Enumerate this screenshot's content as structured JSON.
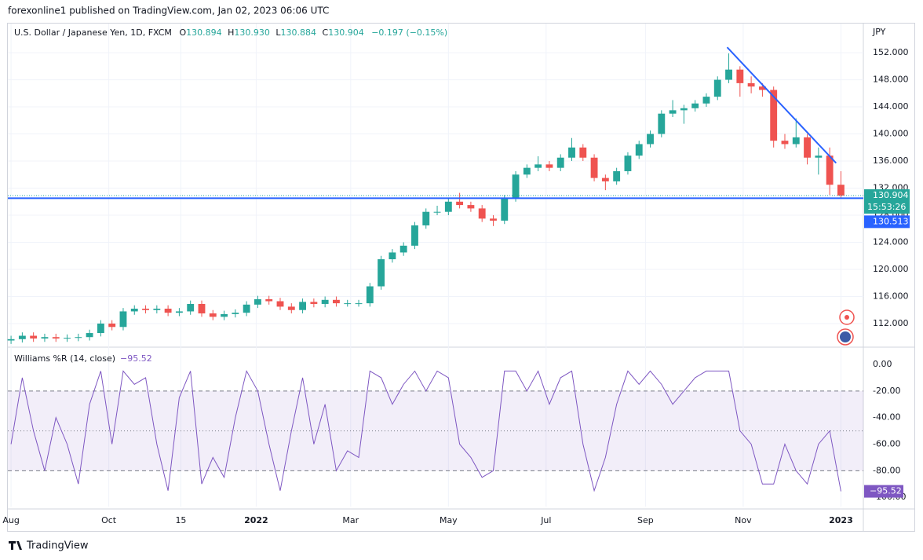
{
  "header": {
    "publisher": "forexonline1 published on TradingView.com, Jan 02, 2023 06:06 UTC"
  },
  "footer": {
    "brand": "TradingView"
  },
  "chart_data": [
    {
      "type": "candlestick",
      "title": "U.S. Dollar / Japanese Yen, 1D, FXCM",
      "ohlc": [
        {
          "label": "O",
          "value": "130.894"
        },
        {
          "label": "H",
          "value": "130.930"
        },
        {
          "label": "L",
          "value": "130.884"
        },
        {
          "label": "C",
          "value": "130.904"
        }
      ],
      "change": "−0.197 (−0.15%)",
      "y_unit": "JPY",
      "up_color": "#26a69a",
      "down_color": "#ef5350",
      "grid": true,
      "x": [
        0,
        7,
        14,
        21,
        28,
        35,
        42,
        49,
        56,
        63,
        70,
        77,
        84,
        91,
        98,
        105,
        112,
        119,
        126,
        133,
        140,
        147,
        154,
        161,
        168,
        175,
        182,
        189,
        196,
        203,
        210,
        217,
        224,
        231,
        238,
        245,
        252,
        259,
        266,
        273,
        280,
        287,
        294,
        301,
        308,
        315,
        322,
        329,
        336,
        343,
        350,
        357,
        364,
        371,
        378,
        385,
        392,
        399,
        406,
        413,
        420,
        427,
        434,
        441,
        448,
        455,
        462,
        469,
        476,
        483,
        490,
        497,
        504,
        511,
        518
      ],
      "open": [
        109.5,
        109.7,
        110.2,
        109.8,
        110.0,
        109.8,
        109.9,
        110.0,
        110.6,
        112.0,
        111.5,
        113.8,
        114.2,
        114.0,
        114.2,
        113.6,
        113.8,
        114.9,
        113.5,
        113.0,
        113.4,
        113.6,
        114.8,
        115.6,
        115.3,
        114.5,
        114.0,
        115.2,
        114.9,
        115.5,
        115.0,
        115.0,
        115.0,
        117.5,
        121.5,
        122.5,
        123.5,
        126.5,
        128.5,
        128.5,
        130.0,
        129.5,
        129.0,
        127.5,
        127.2,
        130.5,
        134.0,
        135.0,
        135.5,
        135.0,
        136.5,
        138.0,
        136.5,
        133.5,
        133.0,
        134.5,
        136.8,
        138.5,
        140.0,
        143.0,
        143.5,
        143.8,
        144.5,
        145.5,
        148.0,
        149.5,
        147.5,
        147.0,
        146.5,
        139.0,
        138.5,
        139.5,
        136.5,
        136.8,
        132.5
      ],
      "high": [
        110.2,
        110.7,
        110.7,
        110.5,
        110.5,
        110.4,
        110.5,
        111.1,
        112.5,
        112.5,
        114.3,
        114.7,
        114.7,
        114.7,
        114.7,
        114.3,
        115.4,
        115.4,
        114.0,
        113.9,
        114.1,
        115.3,
        116.1,
        116.1,
        115.8,
        115.0,
        115.7,
        115.7,
        116.0,
        116.0,
        115.5,
        115.5,
        118.0,
        122.0,
        123.0,
        124.0,
        127.0,
        129.0,
        129.4,
        130.5,
        131.3,
        130.0,
        129.5,
        128.0,
        131.0,
        134.5,
        135.5,
        136.7,
        136.0,
        137.0,
        139.4,
        138.5,
        137.0,
        134.0,
        135.0,
        137.3,
        139.0,
        140.5,
        143.5,
        145.0,
        144.3,
        145.0,
        146.0,
        148.5,
        151.9,
        150.0,
        148.5,
        147.5,
        147.0,
        140.0,
        142.3,
        140.0,
        138.0,
        138.0,
        134.5
      ],
      "low": [
        109.0,
        109.2,
        109.3,
        109.3,
        109.3,
        109.3,
        109.4,
        109.5,
        110.1,
        111.0,
        111.0,
        113.3,
        113.5,
        113.5,
        113.1,
        113.1,
        113.3,
        113.0,
        112.5,
        112.5,
        112.9,
        113.1,
        114.3,
        114.8,
        114.0,
        113.5,
        113.5,
        114.4,
        114.4,
        114.5,
        114.5,
        114.5,
        114.5,
        117.0,
        121.0,
        122.0,
        123.0,
        126.0,
        128.0,
        128.0,
        129.0,
        128.5,
        127.0,
        126.4,
        126.7,
        130.0,
        133.5,
        134.5,
        134.5,
        134.5,
        136.0,
        136.0,
        133.0,
        131.7,
        132.5,
        134.0,
        136.3,
        138.0,
        139.5,
        142.5,
        141.5,
        143.3,
        144.0,
        145.0,
        147.5,
        145.5,
        146.0,
        145.5,
        138.0,
        137.8,
        138.0,
        135.5,
        134.0,
        131.0,
        130.5
      ],
      "close": [
        109.7,
        110.2,
        109.8,
        110.0,
        109.8,
        109.9,
        110.0,
        110.6,
        112.0,
        111.5,
        113.8,
        114.2,
        114.0,
        114.2,
        113.6,
        113.8,
        114.9,
        113.5,
        113.0,
        113.4,
        113.6,
        114.8,
        115.6,
        115.3,
        114.5,
        114.0,
        115.2,
        114.9,
        115.5,
        115.0,
        115.0,
        115.0,
        117.5,
        121.5,
        122.5,
        123.5,
        126.5,
        128.5,
        128.5,
        130.0,
        129.5,
        129.0,
        127.5,
        127.2,
        130.5,
        134.0,
        135.0,
        135.5,
        135.0,
        136.5,
        138.0,
        136.5,
        133.5,
        133.0,
        134.5,
        136.8,
        138.5,
        140.0,
        143.0,
        143.5,
        143.8,
        144.5,
        145.5,
        148.0,
        149.5,
        147.5,
        147.0,
        146.5,
        139.0,
        138.5,
        139.5,
        136.5,
        136.8,
        132.5,
        130.904
      ],
      "xlim": [
        -2,
        532
      ],
      "ylim": [
        108.75,
        156.3
      ],
      "yticks": [
        {
          "value": 112,
          "label": "112.000"
        },
        {
          "value": 116,
          "label": "116.000"
        },
        {
          "value": 120,
          "label": "120.000"
        },
        {
          "value": 124,
          "label": "124.000"
        },
        {
          "value": 128,
          "label": "128.000"
        },
        {
          "value": 132,
          "label": "132.000"
        },
        {
          "value": 136,
          "label": "136.000"
        },
        {
          "value": 140,
          "label": "140.000"
        },
        {
          "value": 144,
          "label": "144.000"
        },
        {
          "value": 148,
          "label": "148.000"
        },
        {
          "value": 152,
          "label": "152.000"
        }
      ],
      "xticks": [
        {
          "value": 0,
          "label": "Aug"
        },
        {
          "value": 61,
          "label": "Oct"
        },
        {
          "value": 106,
          "label": "15"
        },
        {
          "value": 153,
          "label": "2022"
        },
        {
          "value": 212,
          "label": "Mar"
        },
        {
          "value": 273,
          "label": "May"
        },
        {
          "value": 334,
          "label": "Jul"
        },
        {
          "value": 396,
          "label": "Sep"
        },
        {
          "value": 457,
          "label": "Nov"
        },
        {
          "value": 518,
          "label": "2023"
        }
      ],
      "trendline": {
        "x": [
          447,
          515
        ],
        "y": [
          152.8,
          135.7
        ],
        "color": "#2962ff"
      },
      "hline": {
        "value": 130.513,
        "label": "130.513",
        "color": "#2962ff"
      },
      "last_price": {
        "value": 130.904,
        "label": "130.904",
        "countdown": "15:53:26"
      }
    },
    {
      "type": "line",
      "title": "Williams %R (14, close)",
      "color": "#7e57c2",
      "x": [
        0,
        7,
        14,
        21,
        28,
        35,
        42,
        49,
        56,
        63,
        70,
        77,
        84,
        91,
        98,
        105,
        112,
        119,
        126,
        133,
        140,
        147,
        154,
        161,
        168,
        175,
        182,
        189,
        196,
        203,
        210,
        217,
        224,
        231,
        238,
        245,
        252,
        259,
        266,
        273,
        280,
        287,
        294,
        301,
        308,
        315,
        322,
        329,
        336,
        343,
        350,
        357,
        364,
        371,
        378,
        385,
        392,
        399,
        406,
        413,
        420,
        427,
        434,
        441,
        448,
        455,
        462,
        469,
        476,
        483,
        490,
        497,
        504,
        511,
        518
      ],
      "values": [
        -60,
        -10,
        -50,
        -80,
        -40,
        -60,
        -90,
        -30,
        -5,
        -60,
        -5,
        -15,
        -10,
        -60,
        -95,
        -25,
        -5,
        -90,
        -70,
        -85,
        -40,
        -5,
        -20,
        -60,
        -95,
        -50,
        -10,
        -60,
        -30,
        -80,
        -65,
        -70,
        -5,
        -10,
        -30,
        -15,
        -5,
        -20,
        -5,
        -10,
        -60,
        -70,
        -85,
        -80,
        -5,
        -5,
        -20,
        -5,
        -30,
        -10,
        -5,
        -60,
        -95,
        -70,
        -30,
        -5,
        -15,
        -5,
        -15,
        -30,
        -20,
        -10,
        -5,
        -5,
        -5,
        -50,
        -60,
        -90,
        -90,
        -60,
        -80,
        -90,
        -60,
        -50,
        -95.52
      ],
      "last_label": "−95.52",
      "band": [
        -80,
        -20
      ],
      "midline": -50,
      "xlim": [
        -2,
        532
      ],
      "ylim": [
        -107,
        12.4
      ],
      "yticks": [
        {
          "value": 0,
          "label": "0.00"
        },
        {
          "value": -20,
          "label": "-20.00"
        },
        {
          "value": -40,
          "label": "-40.00"
        },
        {
          "value": -60,
          "label": "-60.00"
        },
        {
          "value": -80,
          "label": "-80.00"
        },
        {
          "value": -100,
          "label": "-100.00"
        }
      ]
    }
  ]
}
